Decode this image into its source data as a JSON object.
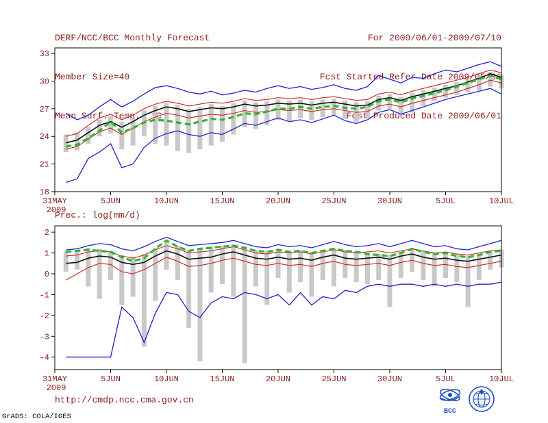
{
  "header": {
    "title": "DERF/NCC/BCC Monthly Forecast",
    "member_size": "Member Size=40",
    "temp_label": "Mean Surf. Temp.: °C",
    "for_range": "For 2009/06/01-2009/07/10",
    "refer_date": "Fcst Started Refer Date 2009/05/31",
    "produced_date": "Fcst Produced Date 2009/06/01"
  },
  "prec_label": "Prec.: log(mm/d)",
  "footer": {
    "url": "http://cmdp.ncc.cma.gov.cn",
    "credit": "GrADS: COLA/IGES",
    "bcc_label": "BCC"
  },
  "colors": {
    "annotation_text": "#8b1a1a",
    "axis": "#000000",
    "ensemble_bar": "#c9c9c9",
    "envelope_blue": "#2020cc",
    "quartile_red": "#cc2020",
    "median_black": "#101010",
    "mean_green": "#2eb82e",
    "logo_blue": "#1a4fbf"
  },
  "chart_data": [
    {
      "type": "line",
      "title": "Mean Surf. Temp.: °C",
      "xlabel": "",
      "ylabel": "",
      "ylim": [
        18,
        33.6
      ],
      "yticks": [
        18,
        21,
        24,
        27,
        30,
        33
      ],
      "x_start_day": 1,
      "x_axis": {
        "domain": [
          0,
          40
        ],
        "tick_positions": [
          0,
          5,
          10,
          15,
          20,
          25,
          30,
          35,
          40
        ],
        "tick_labels": [
          "31MAY",
          "5JUN",
          "10JUN",
          "15JUN",
          "20JUN",
          "25JUN",
          "30JUN",
          "5JUL",
          "10JUL"
        ],
        "year_label": "2009"
      },
      "grid": false,
      "legend": "none",
      "bars": {
        "name": "ensemble-spread-bar",
        "color": "#c9c9c9",
        "low": [
          22.3,
          22.5,
          23.2,
          24.0,
          24.3,
          22.6,
          23.0,
          24.0,
          23.2,
          23.0,
          22.4,
          22.2,
          22.6,
          23.0,
          23.4,
          24.2,
          25.0,
          24.8,
          25.2,
          25.8,
          25.7,
          26.0,
          25.8,
          26.1,
          26.3,
          25.9,
          25.6,
          26.0,
          26.8,
          27.0,
          26.2,
          26.6,
          27.3,
          27.8,
          28.2,
          28.5,
          28.8,
          29.0,
          29.4,
          29.2
        ],
        "high": [
          24.2,
          24.4,
          25.0,
          25.8,
          26.2,
          25.6,
          26.0,
          26.8,
          27.3,
          27.6,
          27.4,
          27.0,
          27.2,
          27.5,
          27.3,
          27.6,
          27.9,
          27.7,
          27.8,
          28.0,
          27.9,
          28.0,
          27.8,
          28.0,
          28.1,
          27.9,
          27.7,
          27.8,
          28.4,
          28.6,
          28.3,
          28.7,
          29.0,
          29.3,
          29.6,
          29.9,
          30.2,
          30.6,
          31.0,
          30.7
        ]
      },
      "series": [
        {
          "name": "ensemble-max",
          "color": "#2020cc",
          "width": 1.3,
          "dashed": false,
          "values": [
            26.5,
            25.8,
            26.3,
            27.2,
            28.0,
            27.2,
            27.8,
            28.6,
            29.3,
            29.5,
            29.2,
            28.8,
            28.6,
            28.9,
            28.5,
            28.7,
            29.0,
            28.8,
            29.2,
            29.5,
            29.2,
            29.4,
            29.1,
            29.3,
            29.6,
            29.2,
            29.0,
            29.4,
            30.6,
            30.2,
            29.8,
            30.4,
            30.3,
            30.8,
            31.2,
            31.0,
            31.4,
            31.8,
            32.1,
            31.6
          ]
        },
        {
          "name": "ensemble-min",
          "color": "#2020cc",
          "width": 1.3,
          "dashed": false,
          "values": [
            19.0,
            19.4,
            21.6,
            22.3,
            23.2,
            20.6,
            21.0,
            22.8,
            23.8,
            24.3,
            24.6,
            24.2,
            24.0,
            24.4,
            24.2,
            24.8,
            25.4,
            25.2,
            25.6,
            26.0,
            25.6,
            25.8,
            25.5,
            25.9,
            26.3,
            25.7,
            25.4,
            25.8,
            26.6,
            26.9,
            26.4,
            26.8,
            27.2,
            27.6,
            28.0,
            28.3,
            28.6,
            28.9,
            29.2,
            28.6
          ]
        },
        {
          "name": "upper-quartile",
          "color": "#cc2020",
          "width": 1.1,
          "dashed": false,
          "values": [
            24.0,
            24.3,
            25.2,
            26.0,
            26.4,
            25.8,
            26.3,
            27.0,
            27.5,
            27.8,
            27.6,
            27.3,
            27.5,
            27.7,
            27.6,
            27.8,
            28.1,
            27.9,
            28.0,
            28.2,
            28.1,
            28.2,
            28.0,
            28.2,
            28.3,
            28.1,
            27.9,
            28.0,
            28.6,
            28.8,
            28.5,
            28.9,
            29.2,
            29.5,
            29.8,
            30.1,
            30.4,
            30.8,
            31.2,
            30.9
          ]
        },
        {
          "name": "lower-quartile",
          "color": "#cc2020",
          "width": 1.1,
          "dashed": false,
          "values": [
            22.6,
            22.9,
            23.7,
            24.5,
            24.9,
            24.2,
            24.9,
            25.6,
            26.1,
            26.5,
            26.3,
            26.0,
            26.2,
            26.4,
            26.3,
            26.5,
            26.8,
            26.6,
            26.7,
            26.9,
            26.8,
            26.9,
            26.7,
            26.9,
            27.0,
            26.8,
            26.6,
            26.7,
            27.3,
            27.5,
            27.2,
            27.6,
            27.9,
            28.2,
            28.5,
            28.8,
            29.2,
            29.6,
            30.1,
            29.8
          ]
        },
        {
          "name": "ensemble-median",
          "color": "#101010",
          "width": 1.6,
          "dashed": false,
          "values": [
            23.3,
            23.6,
            24.4,
            25.2,
            25.6,
            25.0,
            25.6,
            26.3,
            26.8,
            27.2,
            27.0,
            26.7,
            26.9,
            27.1,
            27.0,
            27.2,
            27.5,
            27.3,
            27.4,
            27.6,
            27.5,
            27.6,
            27.4,
            27.6,
            27.7,
            27.5,
            27.3,
            27.4,
            28.0,
            28.2,
            27.9,
            28.3,
            28.6,
            28.9,
            29.2,
            29.5,
            29.9,
            30.3,
            30.8,
            30.4
          ]
        },
        {
          "name": "ensemble-mean",
          "color": "#2eb82e",
          "width": 3.2,
          "dashed": true,
          "values": [
            22.9,
            23.1,
            23.8,
            24.6,
            25.6,
            24.4,
            24.9,
            25.5,
            25.8,
            25.7,
            25.5,
            25.3,
            25.6,
            25.9,
            25.8,
            26.1,
            26.5,
            26.4,
            26.7,
            27.0,
            27.0,
            27.2,
            27.0,
            27.2,
            27.3,
            27.1,
            27.0,
            27.2,
            27.8,
            28.0,
            27.7,
            28.1,
            28.4,
            28.7,
            29.0,
            29.4,
            29.8,
            30.2,
            30.6,
            30.2
          ]
        }
      ]
    },
    {
      "type": "line",
      "title": "Prec.: log(mm/d)",
      "xlabel": "",
      "ylabel": "",
      "ylim": [
        -4.6,
        2.3
      ],
      "yticks": [
        -4,
        -3,
        -2,
        -1,
        0,
        1,
        2
      ],
      "x_start_day": 1,
      "x_axis": {
        "domain": [
          0,
          40
        ],
        "tick_positions": [
          0,
          5,
          10,
          15,
          20,
          25,
          30,
          35,
          40
        ],
        "tick_labels": [
          "31MAY",
          "5JUN",
          "10JUN",
          "15JUN",
          "20JUN",
          "25JUN",
          "30JUN",
          "5JUL",
          "10JUL"
        ],
        "year_label": "2009"
      },
      "grid": false,
      "legend": "none",
      "bars": {
        "name": "ensemble-spread-bar",
        "color": "#c9c9c9",
        "low": [
          0.1,
          0.2,
          -0.6,
          -1.2,
          -0.3,
          -1.5,
          -1.1,
          -3.5,
          -1.3,
          0.2,
          -0.3,
          -2.6,
          -4.2,
          -0.9,
          -0.5,
          -1.1,
          -4.3,
          -0.6,
          -1.5,
          -0.2,
          -0.9,
          -0.4,
          -1.1,
          -0.3,
          -0.6,
          -0.2,
          -0.4,
          -0.5,
          -0.3,
          -1.6,
          -0.2,
          0.1,
          -0.3,
          -0.6,
          -0.2,
          -0.4,
          -1.6,
          -0.3,
          0.2,
          0.3
        ],
        "high": [
          1.1,
          1.15,
          1.25,
          1.2,
          1.1,
          0.9,
          0.8,
          0.95,
          1.25,
          1.6,
          1.35,
          1.15,
          1.25,
          1.3,
          1.35,
          1.4,
          1.3,
          1.15,
          1.1,
          1.2,
          1.1,
          1.15,
          1.05,
          1.15,
          1.25,
          1.15,
          1.1,
          1.0,
          0.95,
          0.9,
          1.05,
          1.25,
          1.1,
          1.0,
          1.05,
          0.9,
          0.85,
          0.95,
          1.1,
          1.15
        ]
      },
      "series": [
        {
          "name": "ensemble-max",
          "color": "#2020cc",
          "width": 1.3,
          "dashed": false,
          "values": [
            1.15,
            1.2,
            1.35,
            1.45,
            1.4,
            1.2,
            1.1,
            1.3,
            1.55,
            1.75,
            1.55,
            1.35,
            1.4,
            1.45,
            1.5,
            1.6,
            1.45,
            1.3,
            1.25,
            1.4,
            1.3,
            1.35,
            1.25,
            1.4,
            1.55,
            1.4,
            1.3,
            1.35,
            1.45,
            1.3,
            1.45,
            1.6,
            1.45,
            1.3,
            1.35,
            1.2,
            1.15,
            1.3,
            1.45,
            1.6
          ]
        },
        {
          "name": "ensemble-min",
          "color": "#2020cc",
          "width": 1.3,
          "dashed": false,
          "values": [
            -4.0,
            -4.0,
            -4.0,
            -4.0,
            -4.0,
            -1.6,
            -2.1,
            -3.3,
            -1.9,
            -0.9,
            -1.0,
            -1.8,
            -2.1,
            -1.4,
            -1.1,
            -1.2,
            -0.9,
            -1.0,
            -1.2,
            -1.0,
            -1.5,
            -0.9,
            -1.5,
            -1.1,
            -1.2,
            -0.8,
            -0.9,
            -0.6,
            -0.5,
            -0.6,
            -0.5,
            -0.5,
            -0.6,
            -0.5,
            -0.6,
            -0.5,
            -0.6,
            -0.5,
            -0.5,
            -0.4
          ]
        },
        {
          "name": "upper-quartile",
          "color": "#cc2020",
          "width": 1.1,
          "dashed": false,
          "values": [
            0.85,
            0.9,
            1.05,
            1.1,
            1.05,
            0.85,
            0.75,
            0.9,
            1.15,
            1.35,
            1.2,
            1.0,
            1.05,
            1.1,
            1.2,
            1.3,
            1.15,
            1.0,
            0.95,
            1.05,
            1.0,
            1.05,
            0.95,
            1.05,
            1.15,
            1.05,
            1.0,
            1.05,
            1.1,
            1.0,
            1.1,
            1.2,
            1.1,
            1.0,
            1.05,
            0.95,
            0.9,
            1.0,
            1.1,
            1.15
          ]
        },
        {
          "name": "lower-quartile",
          "color": "#cc2020",
          "width": 1.1,
          "dashed": false,
          "values": [
            -0.3,
            0.0,
            0.3,
            0.5,
            0.45,
            0.1,
            0.0,
            0.2,
            0.5,
            0.8,
            0.6,
            0.35,
            0.4,
            0.5,
            0.65,
            0.75,
            0.6,
            0.45,
            0.4,
            0.5,
            0.4,
            0.45,
            0.35,
            0.5,
            0.6,
            0.45,
            0.4,
            0.45,
            0.5,
            0.4,
            0.55,
            0.65,
            0.5,
            0.4,
            0.45,
            0.35,
            0.3,
            0.4,
            0.5,
            0.6
          ]
        },
        {
          "name": "ensemble-median",
          "color": "#101010",
          "width": 1.6,
          "dashed": false,
          "values": [
            0.5,
            0.55,
            0.75,
            0.85,
            0.8,
            0.55,
            0.45,
            0.55,
            0.85,
            1.1,
            0.95,
            0.7,
            0.75,
            0.8,
            0.95,
            1.05,
            0.9,
            0.75,
            0.7,
            0.8,
            0.7,
            0.75,
            0.65,
            0.8,
            0.9,
            0.75,
            0.7,
            0.75,
            0.8,
            0.7,
            0.85,
            0.95,
            0.8,
            0.7,
            0.75,
            0.65,
            0.6,
            0.7,
            0.8,
            0.9
          ]
        },
        {
          "name": "ensemble-mean",
          "color": "#2eb82e",
          "width": 3.2,
          "dashed": true,
          "values": [
            1.05,
            1.1,
            1.15,
            1.1,
            1.05,
            0.8,
            0.6,
            0.75,
            1.2,
            1.6,
            1.3,
            1.1,
            1.2,
            1.25,
            1.3,
            1.35,
            1.25,
            1.1,
            1.05,
            1.15,
            1.05,
            1.1,
            1.0,
            1.1,
            1.2,
            1.1,
            1.05,
            0.95,
            0.9,
            0.85,
            1.0,
            1.2,
            1.05,
            0.95,
            1.0,
            0.85,
            0.8,
            0.9,
            1.05,
            1.1
          ]
        }
      ]
    }
  ]
}
